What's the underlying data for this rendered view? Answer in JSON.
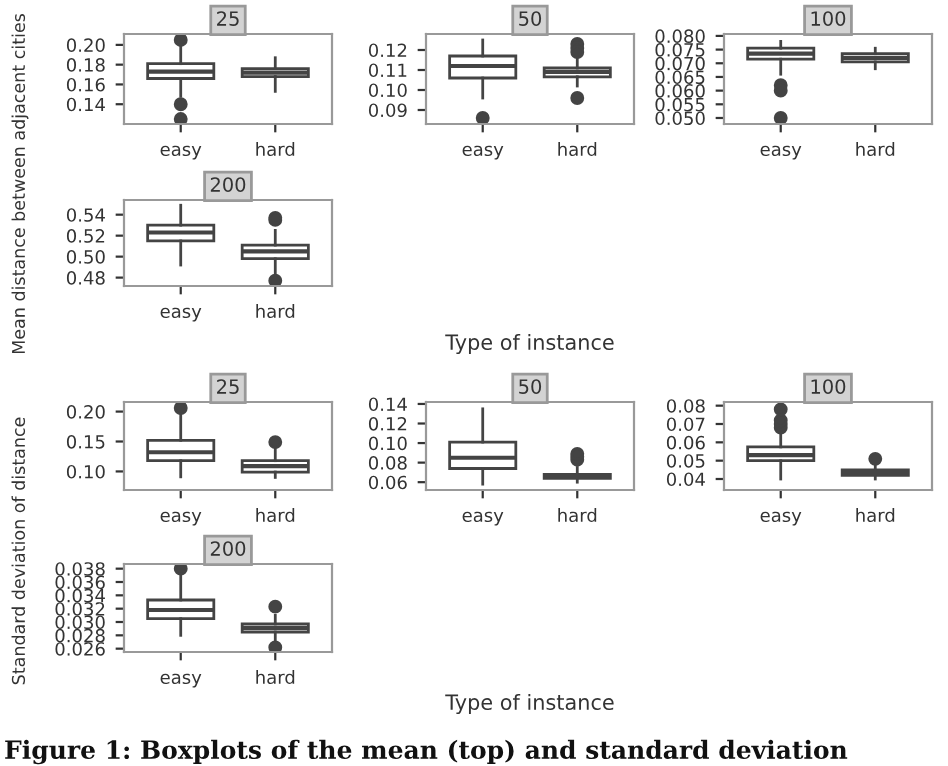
{
  "chart_data": [
    {
      "type": "box",
      "title": "25",
      "ylabel": "Mean distance between adjacent cities",
      "categories": [
        "easy",
        "hard"
      ],
      "ylim": [
        0.12,
        0.211
      ],
      "yticks": [
        {
          "value": 0.14,
          "label": "0.14"
        },
        {
          "value": 0.16,
          "label": "0.16"
        },
        {
          "value": 0.18,
          "label": "0.18"
        },
        {
          "value": 0.2,
          "label": "0.20"
        }
      ],
      "boxes": [
        {
          "low": 0.148,
          "q1": 0.166,
          "median": 0.173,
          "q3": 0.181,
          "high": 0.202,
          "outliers": [
            0.205,
            0.14,
            0.125
          ]
        },
        {
          "low": 0.153,
          "q1": 0.168,
          "median": 0.172,
          "q3": 0.176,
          "high": 0.187
        }
      ]
    },
    {
      "type": "box",
      "title": "50",
      "categories": [
        "easy",
        "hard"
      ],
      "ylim": [
        0.083,
        0.128
      ],
      "yticks": [
        {
          "value": 0.09,
          "label": "0.09"
        },
        {
          "value": 0.1,
          "label": "0.10"
        },
        {
          "value": 0.11,
          "label": "0.11"
        },
        {
          "value": 0.12,
          "label": "0.12"
        }
      ],
      "boxes": [
        {
          "low": 0.096,
          "q1": 0.106,
          "median": 0.112,
          "q3": 0.117,
          "high": 0.125,
          "outliers": [
            0.086
          ]
        },
        {
          "low": 0.102,
          "q1": 0.1066,
          "median": 0.109,
          "q3": 0.111,
          "high": 0.116,
          "outliers": [
            0.123,
            0.121,
            0.119,
            0.096
          ]
        }
      ]
    },
    {
      "type": "box",
      "title": "100",
      "categories": [
        "easy",
        "hard"
      ],
      "ylim": [
        0.0478,
        0.0807
      ],
      "yticks": [
        {
          "value": 0.05,
          "label": "0.050"
        },
        {
          "value": 0.055,
          "label": "0.055"
        },
        {
          "value": 0.06,
          "label": "0.060"
        },
        {
          "value": 0.065,
          "label": "0.065"
        },
        {
          "value": 0.07,
          "label": "0.070"
        },
        {
          "value": 0.075,
          "label": "0.075"
        },
        {
          "value": 0.08,
          "label": "0.080"
        }
      ],
      "boxes": [
        {
          "low": 0.066,
          "q1": 0.0715,
          "median": 0.0735,
          "q3": 0.0755,
          "high": 0.078,
          "outliers": [
            0.062,
            0.06,
            0.05
          ]
        },
        {
          "low": 0.068,
          "q1": 0.0705,
          "median": 0.072,
          "q3": 0.0735,
          "high": 0.0755
        }
      ]
    },
    {
      "type": "box",
      "title": "200",
      "xlabel": "Type of instance",
      "categories": [
        "easy",
        "hard"
      ],
      "ylim": [
        0.472,
        0.554
      ],
      "yticks": [
        {
          "value": 0.48,
          "label": "0.48"
        },
        {
          "value": 0.5,
          "label": "0.50"
        },
        {
          "value": 0.52,
          "label": "0.52"
        },
        {
          "value": 0.54,
          "label": "0.54"
        }
      ],
      "boxes": [
        {
          "low": 0.492,
          "q1": 0.515,
          "median": 0.523,
          "q3": 0.53,
          "high": 0.549
        },
        {
          "low": 0.482,
          "q1": 0.498,
          "median": 0.505,
          "q3": 0.511,
          "high": 0.525,
          "outliers": [
            0.535,
            0.537,
            0.477
          ]
        }
      ]
    },
    {
      "type": "box",
      "title": "25",
      "ylabel": "Standard deviation of distance",
      "categories": [
        "easy",
        "hard"
      ],
      "ylim": [
        0.069,
        0.216
      ],
      "yticks": [
        {
          "value": 0.1,
          "label": "0.10"
        },
        {
          "value": 0.15,
          "label": "0.15"
        },
        {
          "value": 0.2,
          "label": "0.20"
        }
      ],
      "boxes": [
        {
          "low": 0.091,
          "q1": 0.118,
          "median": 0.132,
          "q3": 0.152,
          "high": 0.2,
          "outliers": [
            0.206
          ]
        },
        {
          "low": 0.09,
          "q1": 0.099,
          "median": 0.109,
          "q3": 0.118,
          "high": 0.14,
          "outliers": [
            0.149
          ]
        }
      ]
    },
    {
      "type": "box",
      "title": "50",
      "categories": [
        "easy",
        "hard"
      ],
      "ylim": [
        0.052,
        0.142
      ],
      "yticks": [
        {
          "value": 0.06,
          "label": "0.06"
        },
        {
          "value": 0.08,
          "label": "0.08"
        },
        {
          "value": 0.1,
          "label": "0.10"
        },
        {
          "value": 0.12,
          "label": "0.12"
        },
        {
          "value": 0.14,
          "label": "0.14"
        }
      ],
      "boxes": [
        {
          "low": 0.058,
          "q1": 0.074,
          "median": 0.085,
          "q3": 0.101,
          "high": 0.135
        },
        {
          "low": 0.06,
          "q1": 0.064,
          "median": 0.066,
          "q3": 0.068,
          "high": 0.075,
          "outliers": [
            0.083,
            0.086,
            0.089
          ]
        }
      ]
    },
    {
      "type": "box",
      "title": "100",
      "categories": [
        "easy",
        "hard"
      ],
      "ylim": [
        0.034,
        0.082
      ],
      "yticks": [
        {
          "value": 0.04,
          "label": "0.04"
        },
        {
          "value": 0.05,
          "label": "0.05"
        },
        {
          "value": 0.06,
          "label": "0.06"
        },
        {
          "value": 0.07,
          "label": "0.07"
        },
        {
          "value": 0.08,
          "label": "0.08"
        }
      ],
      "boxes": [
        {
          "low": 0.04,
          "q1": 0.05,
          "median": 0.053,
          "q3": 0.0575,
          "high": 0.066,
          "outliers": [
            0.068,
            0.07,
            0.072,
            0.078
          ]
        },
        {
          "low": 0.04,
          "q1": 0.042,
          "median": 0.0435,
          "q3": 0.045,
          "high": 0.049,
          "outliers": [
            0.051
          ]
        }
      ]
    },
    {
      "type": "box",
      "title": "200",
      "xlabel": "Type of instance",
      "categories": [
        "easy",
        "hard"
      ],
      "ylim": [
        0.0255,
        0.0387
      ],
      "yticks": [
        {
          "value": 0.026,
          "label": "0.026"
        },
        {
          "value": 0.028,
          "label": "0.028"
        },
        {
          "value": 0.03,
          "label": "0.030"
        },
        {
          "value": 0.032,
          "label": "0.032"
        },
        {
          "value": 0.034,
          "label": "0.034"
        },
        {
          "value": 0.036,
          "label": "0.036"
        },
        {
          "value": 0.038,
          "label": "0.038"
        }
      ],
      "boxes": [
        {
          "low": 0.028,
          "q1": 0.0305,
          "median": 0.0318,
          "q3": 0.0333,
          "high": 0.037,
          "outliers": [
            0.038
          ]
        },
        {
          "low": 0.0265,
          "q1": 0.0285,
          "median": 0.0291,
          "q3": 0.0297,
          "high": 0.031,
          "outliers": [
            0.0323,
            0.0262
          ]
        }
      ],
      "annotations": [
        "Figure 1: Boxplots of the mean (top) and standard deviation"
      ]
    }
  ]
}
